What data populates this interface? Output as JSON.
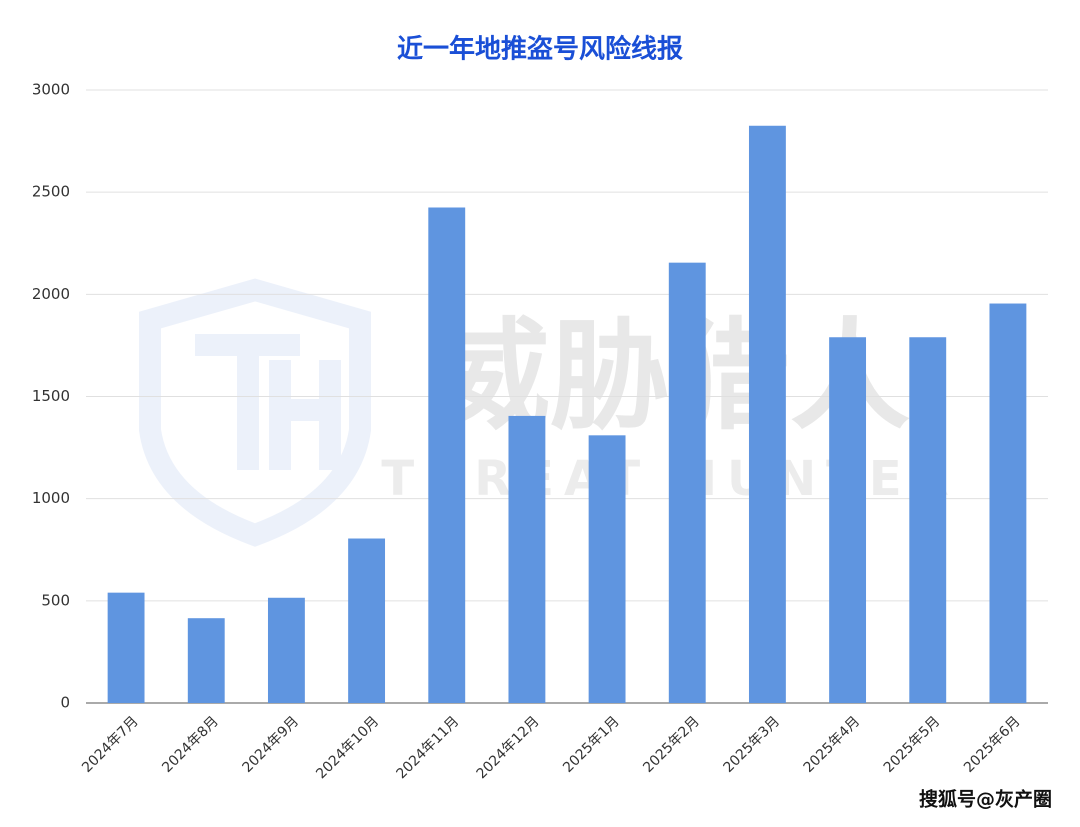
{
  "chart_data": {
    "type": "bar",
    "title": "近一年地推盗号风险线报",
    "categories": [
      "2024年7月",
      "2024年8月",
      "2024年9月",
      "2024年10月",
      "2024年11月",
      "2024年12月",
      "2025年1月",
      "2025年2月",
      "2025年3月",
      "2025年4月",
      "2025年5月",
      "2025年6月"
    ],
    "values": [
      540,
      415,
      515,
      805,
      2425,
      1405,
      1310,
      2155,
      2825,
      1790,
      1790,
      1955
    ],
    "color": "#5f95e0",
    "ylim": [
      0,
      3000
    ],
    "yticks": [
      0,
      500,
      1000,
      1500,
      2000,
      2500,
      3000
    ],
    "grid": true,
    "watermark": [
      "威胁猎人",
      "THREAT HUNTER"
    ],
    "source": "搜狐号@灰产圈"
  }
}
